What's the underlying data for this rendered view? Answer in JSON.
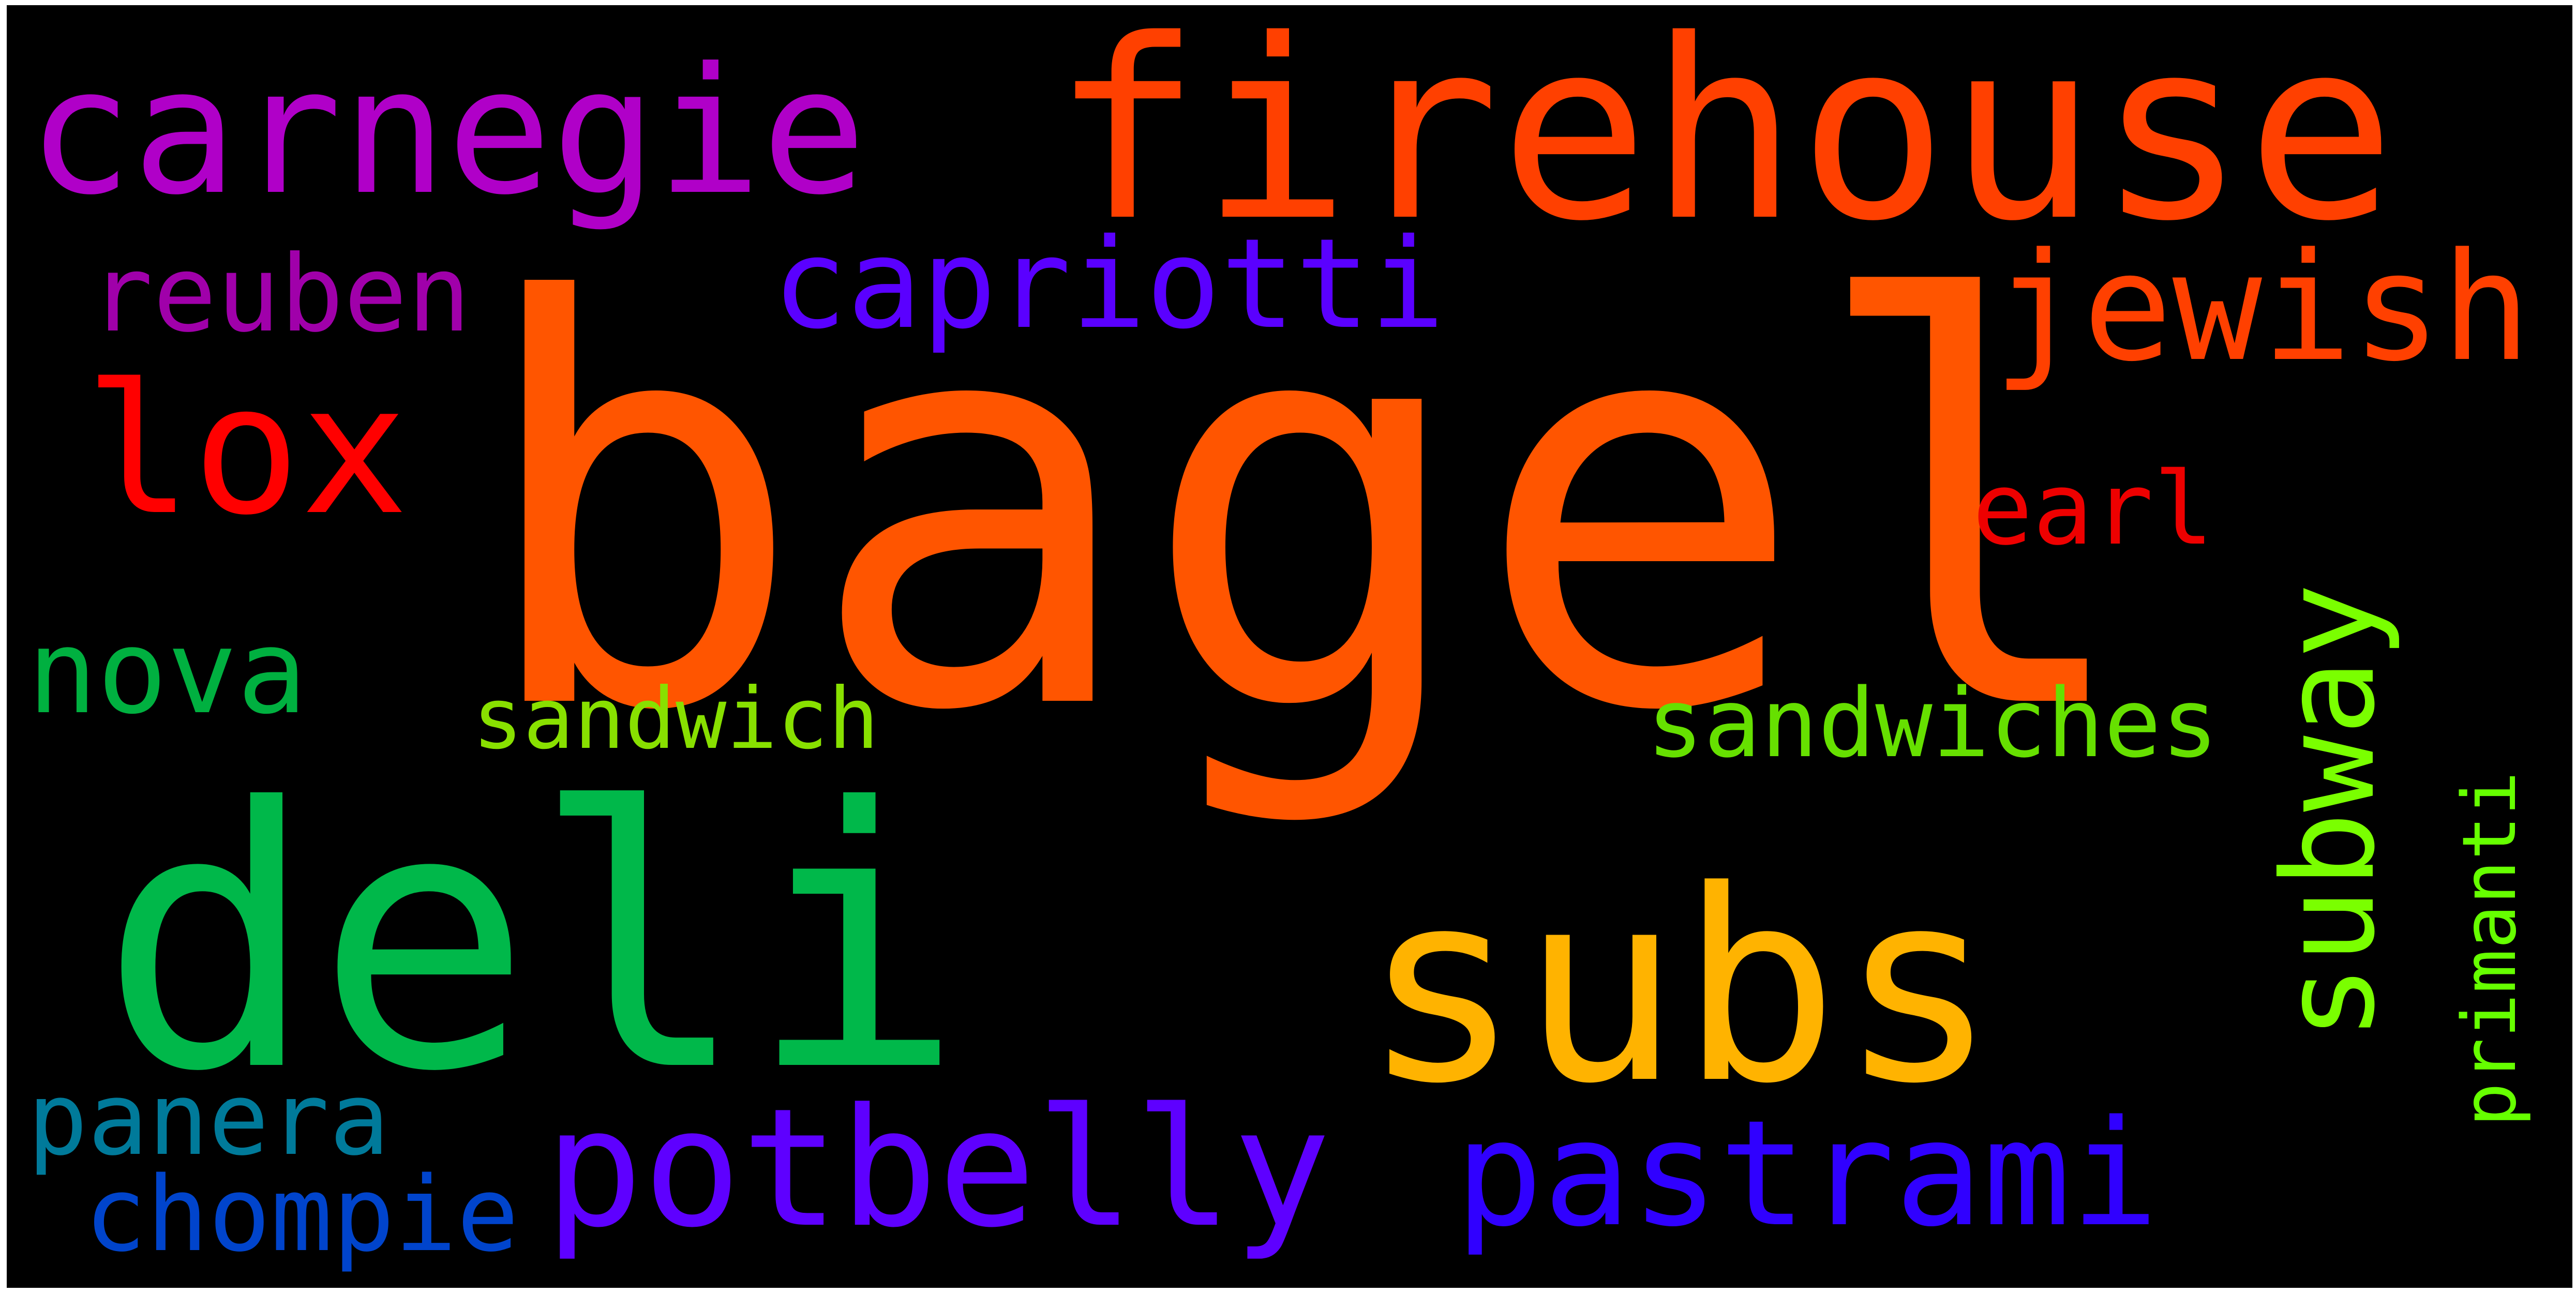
{
  "words": [
    {
      "text": "bagel",
      "color": "#ff5500",
      "rotated": false
    },
    {
      "text": "firehouse",
      "color": "#ff4000",
      "rotated": false
    },
    {
      "text": "carnegie",
      "color": "#b000c8",
      "rotated": false
    },
    {
      "text": "deli",
      "color": "#00b84a",
      "rotated": false
    },
    {
      "text": "subs",
      "color": "#ffb300",
      "rotated": false
    },
    {
      "text": "subway",
      "color": "#7aff00",
      "rotated": true
    },
    {
      "text": "jewish",
      "color": "#ff4000",
      "rotated": false
    },
    {
      "text": "lox",
      "color": "#ff0000",
      "rotated": false
    },
    {
      "text": "capriotti",
      "color": "#5a00ff",
      "rotated": false
    },
    {
      "text": "reuben",
      "color": "#a000aa",
      "rotated": false
    },
    {
      "text": "earl",
      "color": "#ee0000",
      "rotated": false
    },
    {
      "text": "nova",
      "color": "#00b040",
      "rotated": false
    },
    {
      "text": "sandwich",
      "color": "#88e000",
      "rotated": false
    },
    {
      "text": "sandwiches",
      "color": "#66e000",
      "rotated": false
    },
    {
      "text": "primanti",
      "color": "#66ff00",
      "rotated": true
    },
    {
      "text": "potbelly",
      "color": "#5e00ff",
      "rotated": false
    },
    {
      "text": "pastrami",
      "color": "#3000ff",
      "rotated": false
    },
    {
      "text": "panera",
      "color": "#007a9a",
      "rotated": false
    },
    {
      "text": "chompie",
      "color": "#0044cc",
      "rotated": false
    }
  ]
}
